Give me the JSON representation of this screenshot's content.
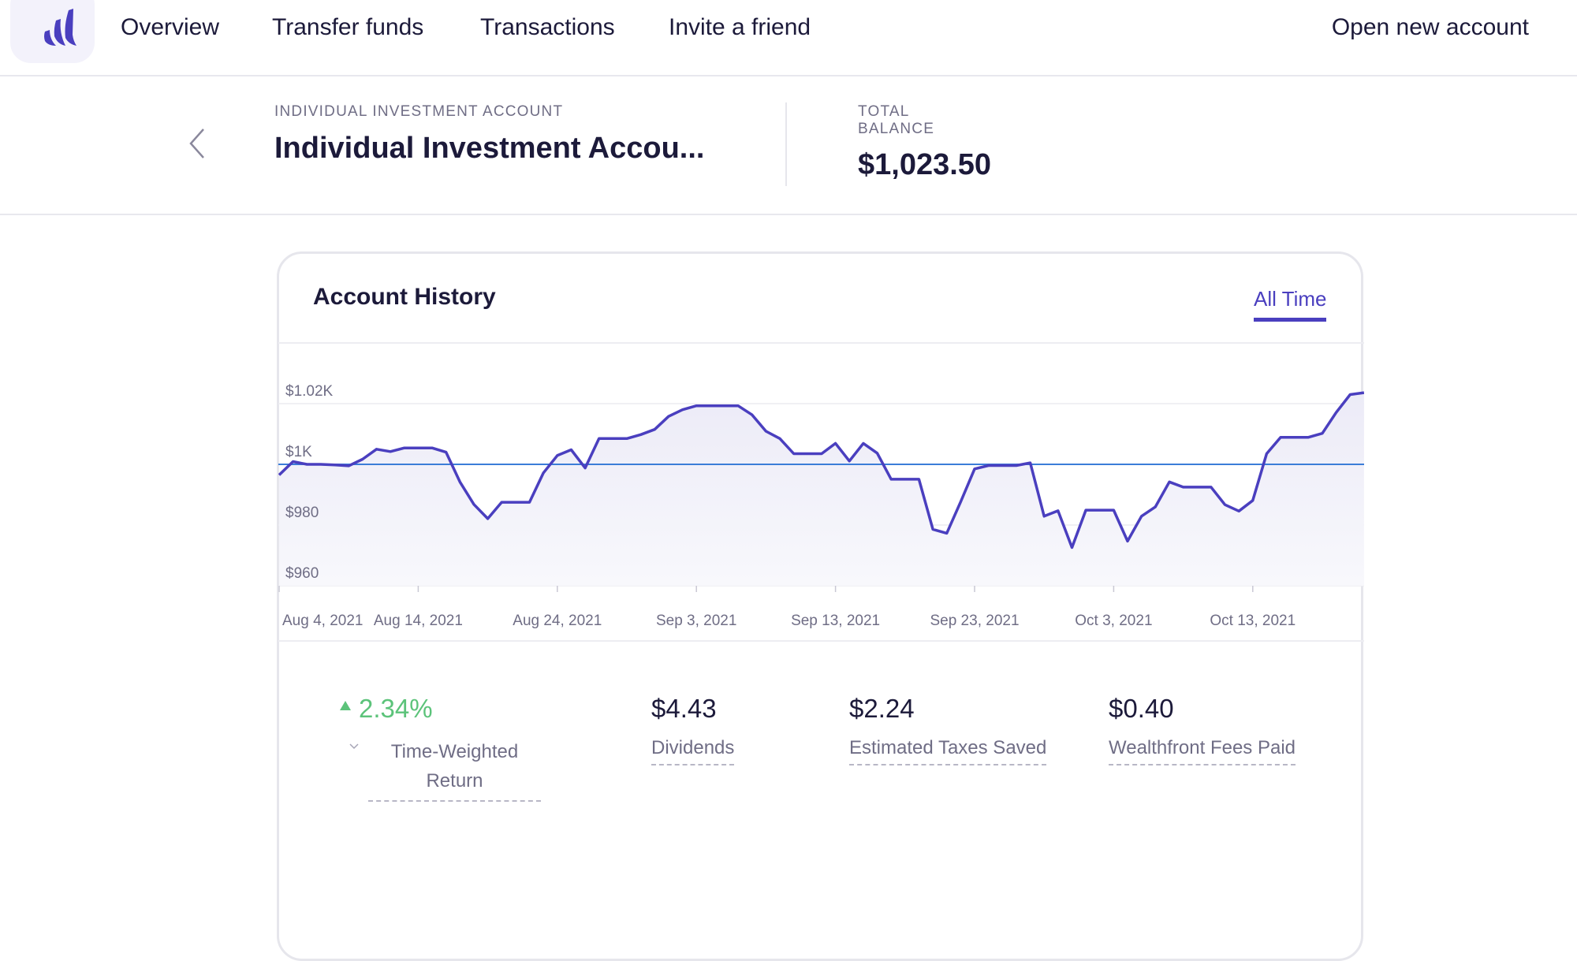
{
  "nav": {
    "items": [
      "Overview",
      "Transfer funds",
      "Transactions",
      "Invite a friend"
    ],
    "open_account": "Open new account"
  },
  "account": {
    "type_label": "INDIVIDUAL INVESTMENT ACCOUNT",
    "name": "Individual Investment Accou...",
    "balance_label_1": "TOTAL",
    "balance_label_2": "BALANCE",
    "balance": "$1,023.50"
  },
  "history": {
    "title": "Account History",
    "range": "All Time"
  },
  "stats": {
    "twr_value": "2.34%",
    "twr_label_1": "Time-Weighted",
    "twr_label_2": "Return",
    "dividends_value": "$4.43",
    "dividends_label": "Dividends",
    "taxes_value": "$2.24",
    "taxes_label": "Estimated Taxes Saved",
    "fees_value": "$0.40",
    "fees_label": "Wealthfront Fees Paid"
  },
  "colors": {
    "brand": "#4a3fbf",
    "baseline": "#3b7dd8",
    "positive": "#5cc37a"
  },
  "chart_data": {
    "type": "area",
    "title": "Account History",
    "x_start": "Aug 4, 2021",
    "x_unit": "day",
    "ylim": [
      960,
      1025
    ],
    "yticks": [
      960,
      980,
      1000,
      1020
    ],
    "ytick_labels": [
      "$960",
      "$980",
      "$1K",
      "$1.02K"
    ],
    "xtick_days": [
      0,
      10,
      20,
      30,
      40,
      50,
      60,
      70
    ],
    "xtick_labels": [
      "Aug 4, 2021",
      "Aug 14, 2021",
      "Aug 24, 2021",
      "Sep 3, 2021",
      "Sep 13, 2021",
      "Sep 23, 2021",
      "Oct 3, 2021",
      "Oct 13, 2021"
    ],
    "baseline": 1000,
    "values": [
      996.5,
      1000.9,
      1000,
      1000,
      999.8,
      999.5,
      1001.7,
      1005,
      1004.2,
      1005.4,
      1005.4,
      1005.4,
      1004,
      994.2,
      986.8,
      982.1,
      987.5,
      987.5,
      987.5,
      997.2,
      1002.9,
      1004.8,
      998.8,
      1008.5,
      1008.5,
      1008.5,
      1009.8,
      1011.5,
      1015.8,
      1018,
      1019.3,
      1019.3,
      1019.3,
      1019.3,
      1016.3,
      1010.9,
      1008.5,
      1003.5,
      1003.5,
      1003.5,
      1006.9,
      1001.1,
      1006.9,
      1003.7,
      995.1,
      995.1,
      995.1,
      978.6,
      977.3,
      987.7,
      998.5,
      999.6,
      999.6,
      999.6,
      1000.5,
      982.9,
      984.7,
      972.6,
      984.9,
      984.9,
      984.9,
      974.7,
      982.9,
      986,
      994.2,
      992.5,
      992.5,
      992.5,
      986.7,
      984.6,
      988.1,
      1003.5,
      1008.9,
      1008.9,
      1008.9,
      1010.2,
      1017.1,
      1023,
      1023.6
    ],
    "grid": true
  }
}
